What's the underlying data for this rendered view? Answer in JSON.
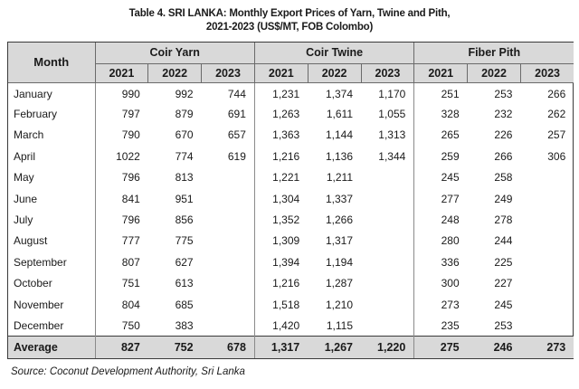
{
  "title_line1": "Table 4. SRI LANKA: Monthly Export Prices of Yarn, Twine and Pith,",
  "title_line2": "2021-2023 (US$/MT, FOB Colombo)",
  "header": {
    "month": "Month",
    "groups": [
      "Coir Yarn",
      "Coir Twine",
      "Fiber Pith"
    ],
    "years": [
      "2021",
      "2022",
      "2023"
    ]
  },
  "rows": [
    {
      "month": "January",
      "yarn": [
        "990",
        "992",
        "744"
      ],
      "twine": [
        "1,231",
        "1,374",
        "1,170"
      ],
      "pith": [
        "251",
        "253",
        "266"
      ]
    },
    {
      "month": "February",
      "yarn": [
        "797",
        "879",
        "691"
      ],
      "twine": [
        "1,263",
        "1,611",
        "1,055"
      ],
      "pith": [
        "328",
        "232",
        "262"
      ]
    },
    {
      "month": "March",
      "yarn": [
        "790",
        "670",
        "657"
      ],
      "twine": [
        "1,363",
        "1,144",
        "1,313"
      ],
      "pith": [
        "265",
        "226",
        "257"
      ]
    },
    {
      "month": "April",
      "yarn": [
        "1022",
        "774",
        "619"
      ],
      "twine": [
        "1,216",
        "1,136",
        "1,344"
      ],
      "pith": [
        "259",
        "266",
        "306"
      ]
    },
    {
      "month": "May",
      "yarn": [
        "796",
        "813",
        ""
      ],
      "twine": [
        "1,221",
        "1,211",
        ""
      ],
      "pith": [
        "245",
        "258",
        ""
      ]
    },
    {
      "month": "June",
      "yarn": [
        "841",
        "951",
        ""
      ],
      "twine": [
        "1,304",
        "1,337",
        ""
      ],
      "pith": [
        "277",
        "249",
        ""
      ]
    },
    {
      "month": "July",
      "yarn": [
        "796",
        "856",
        ""
      ],
      "twine": [
        "1,352",
        "1,266",
        ""
      ],
      "pith": [
        "248",
        "278",
        ""
      ]
    },
    {
      "month": "August",
      "yarn": [
        "777",
        "775",
        ""
      ],
      "twine": [
        "1,309",
        "1,317",
        ""
      ],
      "pith": [
        "280",
        "244",
        ""
      ]
    },
    {
      "month": "September",
      "yarn": [
        "807",
        "627",
        ""
      ],
      "twine": [
        "1,394",
        "1,194",
        ""
      ],
      "pith": [
        "336",
        "225",
        ""
      ]
    },
    {
      "month": "October",
      "yarn": [
        "751",
        "613",
        ""
      ],
      "twine": [
        "1,216",
        "1,287",
        ""
      ],
      "pith": [
        "300",
        "227",
        ""
      ]
    },
    {
      "month": "November",
      "yarn": [
        "804",
        "685",
        ""
      ],
      "twine": [
        "1,518",
        "1,210",
        ""
      ],
      "pith": [
        "273",
        "245",
        ""
      ]
    },
    {
      "month": "December",
      "yarn": [
        "750",
        "383",
        ""
      ],
      "twine": [
        "1,420",
        "1,115",
        ""
      ],
      "pith": [
        "235",
        "253",
        ""
      ]
    }
  ],
  "average": {
    "label": "Average",
    "yarn": [
      "827",
      "752",
      "678"
    ],
    "twine": [
      "1,317",
      "1,267",
      "1,220"
    ],
    "pith": [
      "275",
      "246",
      "273"
    ]
  },
  "source": "Source: Coconut Development Authority, Sri Lanka"
}
